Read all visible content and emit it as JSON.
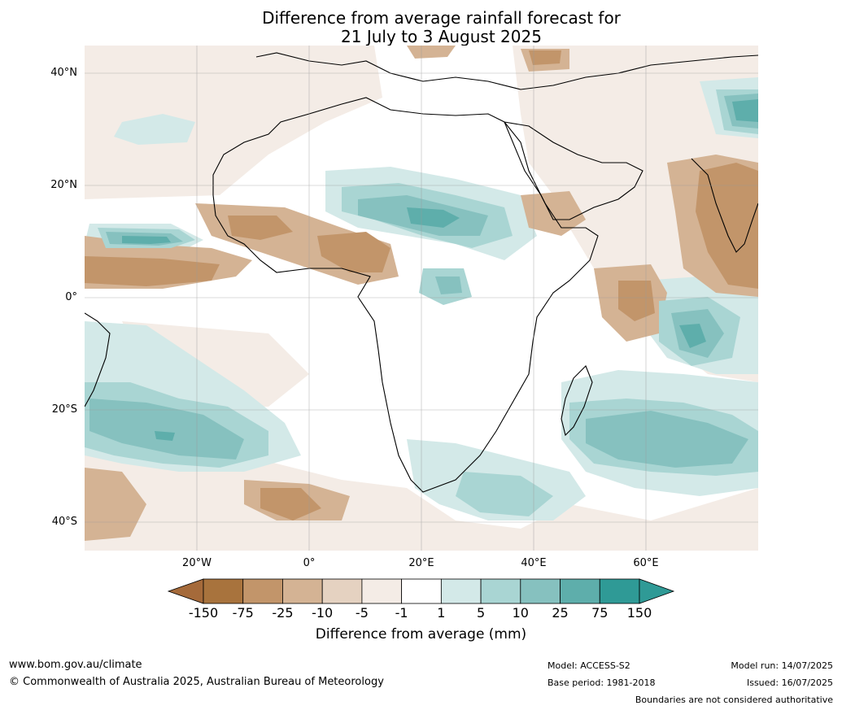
{
  "title": {
    "line1": "Difference from average rainfall forecast for",
    "line2": "21 July to 3 August 2025"
  },
  "axes": {
    "lat_ticks": [
      "40°N",
      "20°N",
      "0°",
      "20°S",
      "40°S"
    ],
    "lon_ticks": [
      "20°W",
      "0°",
      "20°E",
      "40°E",
      "60°E"
    ],
    "lon_range": [
      -40,
      80
    ],
    "lat_range": [
      -45,
      45
    ],
    "grid": true
  },
  "colorbar": {
    "title": "Difference from average (mm)",
    "ticks": [
      "-150",
      "-75",
      "-25",
      "-10",
      "-5",
      "-1",
      "1",
      "5",
      "10",
      "25",
      "75",
      "150"
    ],
    "colors": [
      "#a56a3a",
      "#a8733d",
      "#c2956a",
      "#d4b394",
      "#e5d2c1",
      "#f4ece6",
      "#ffffff",
      "#d3e9e8",
      "#a9d5d3",
      "#86c1bf",
      "#5eaeab",
      "#2f9a96",
      "#2f9a96"
    ]
  },
  "footer": {
    "url": "www.bom.gov.au/climate",
    "copyright": "© Commonwealth of Australia 2025, Australian Bureau of Meteorology",
    "model": "Model: ACCESS-S2",
    "base_period": "Base period: 1981-2018",
    "model_run": "Model run: 14/07/2025",
    "issued": "Issued: 16/07/2025",
    "disclaimer": "Boundaries are not considered authoritative"
  }
}
